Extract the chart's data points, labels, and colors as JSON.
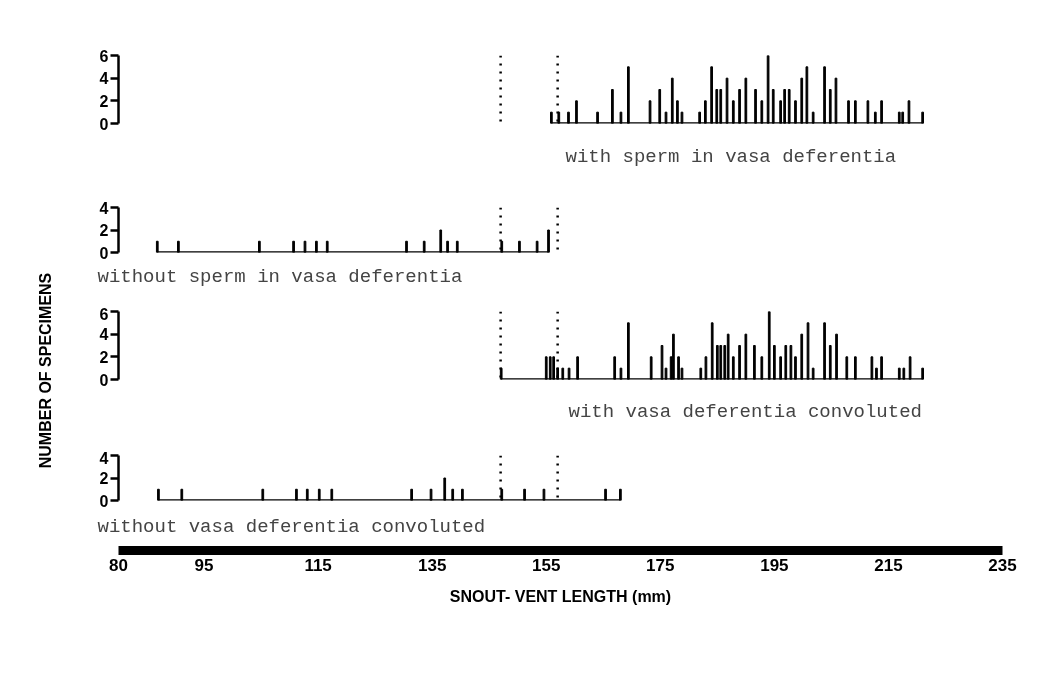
{
  "chart_data": [
    {
      "type": "bar",
      "title": "with sperm in vasa deferentia",
      "color": "#000000",
      "grid": false,
      "tick_labels": "y",
      "xlim": [
        80,
        235
      ],
      "xticks": [
        80,
        95,
        115,
        135,
        155,
        175,
        195,
        215,
        235
      ],
      "ylim": [
        0,
        6
      ],
      "yticks": [
        0,
        2,
        4,
        6
      ],
      "x": [
        155.9,
        157.2,
        158.9,
        160.3,
        164.0,
        166.6,
        168.1,
        169.4,
        173.2,
        174.9,
        176.0,
        177.1,
        178.0,
        178.8,
        181.9,
        182.9,
        184.0,
        184.9,
        185.6,
        186.7,
        187.8,
        188.9,
        190.0,
        191.7,
        192.8,
        193.9,
        194.8,
        196.1,
        196.8,
        197.6,
        198.7,
        199.8,
        200.7,
        201.8,
        203.8,
        204.8,
        205.8,
        208.0,
        209.2,
        211.4,
        212.7,
        213.8,
        216.9,
        217.5,
        218.6,
        221.0
      ],
      "values": [
        1,
        1,
        1,
        2,
        1,
        3,
        1,
        5,
        2,
        3,
        1,
        4,
        2,
        1,
        1,
        2,
        5,
        3,
        3,
        4,
        2,
        3,
        4,
        3,
        2,
        6,
        3,
        2,
        3,
        3,
        2,
        4,
        5,
        1,
        5,
        3,
        4,
        2,
        2,
        2,
        1,
        2,
        1,
        1,
        2,
        1
      ],
      "ref_lines": [
        {
          "axis": "x",
          "value": 147,
          "line_style": "dotted"
        },
        {
          "axis": "x",
          "value": 157,
          "line_style": "dotted"
        }
      ]
    },
    {
      "type": "bar",
      "title": "without sperm in vasa deferentia",
      "color": "#000000",
      "grid": false,
      "tick_labels": "y",
      "xlim": [
        80,
        235
      ],
      "xticks": [
        80,
        95,
        115,
        135,
        155,
        175,
        195,
        215,
        235
      ],
      "ylim": [
        0,
        4
      ],
      "yticks": [
        0,
        2,
        4
      ],
      "x": [
        86.8,
        90.5,
        104.7,
        110.7,
        112.7,
        114.7,
        116.6,
        130.5,
        133.6,
        136.5,
        137.7,
        139.4,
        147.2,
        150.3,
        153.4,
        155.4
      ],
      "values": [
        1,
        1,
        1,
        1,
        1,
        1,
        1,
        1,
        1,
        2,
        1,
        1,
        1,
        1,
        1,
        2
      ],
      "ref_lines": [
        {
          "axis": "x",
          "value": 147,
          "line_style": "dotted"
        },
        {
          "axis": "x",
          "value": 157,
          "line_style": "dotted"
        }
      ]
    },
    {
      "type": "bar",
      "title": "with vasa deferentia convoluted",
      "ylabel": "NUMBER OF SPECIMENS",
      "color": "#000000",
      "grid": false,
      "tick_labels": "y",
      "xlim": [
        80,
        235
      ],
      "xticks": [
        80,
        95,
        115,
        135,
        155,
        175,
        195,
        215,
        235
      ],
      "ylim": [
        0,
        6
      ],
      "yticks": [
        0,
        2,
        4,
        6
      ],
      "x": [
        147.1,
        155.0,
        155.7,
        156.3,
        157.0,
        157.9,
        159.0,
        160.5,
        167.0,
        168.1,
        169.4,
        173.4,
        175.3,
        176.0,
        176.9,
        177.3,
        178.2,
        178.8,
        182.1,
        183.0,
        184.1,
        185.0,
        185.6,
        186.3,
        186.9,
        187.8,
        188.9,
        190.0,
        191.5,
        192.8,
        194.1,
        195.0,
        196.1,
        197.0,
        197.9,
        198.7,
        199.8,
        200.9,
        201.8,
        203.8,
        204.8,
        205.9,
        207.7,
        209.2,
        212.1,
        212.9,
        213.8,
        216.9,
        217.7,
        218.8,
        221.0
      ],
      "values": [
        1,
        2,
        2,
        2,
        1,
        1,
        1,
        2,
        2,
        1,
        5,
        2,
        3,
        1,
        2,
        4,
        2,
        1,
        1,
        2,
        5,
        3,
        3,
        3,
        4,
        2,
        3,
        4,
        3,
        2,
        6,
        3,
        2,
        3,
        3,
        2,
        4,
        5,
        1,
        5,
        3,
        4,
        2,
        2,
        2,
        1,
        2,
        1,
        1,
        2,
        1
      ],
      "ref_lines": [
        {
          "axis": "x",
          "value": 147,
          "line_style": "dotted"
        },
        {
          "axis": "x",
          "value": 157,
          "line_style": "dotted"
        }
      ]
    },
    {
      "type": "bar",
      "title": "without vasa deferentia convoluted",
      "xlabel": "SNOUT- VENT LENGTH (mm)",
      "color": "#000000",
      "grid": false,
      "xlim": [
        80,
        235
      ],
      "xticks": [
        80,
        95,
        115,
        135,
        155,
        175,
        195,
        215,
        235
      ],
      "ylim": [
        0,
        4
      ],
      "yticks": [
        0,
        2,
        4
      ],
      "x": [
        87.0,
        91.1,
        105.3,
        111.2,
        113.1,
        115.2,
        117.4,
        131.4,
        134.8,
        137.2,
        138.6,
        140.3,
        147.2,
        151.2,
        154.6,
        165.4,
        168.0
      ],
      "values": [
        1,
        1,
        1,
        1,
        1,
        1,
        1,
        1,
        1,
        2,
        1,
        1,
        1,
        1,
        1,
        1,
        1
      ],
      "ref_lines": [
        {
          "axis": "x",
          "value": 147,
          "line_style": "dotted"
        },
        {
          "axis": "x",
          "value": 157,
          "line_style": "dotted"
        }
      ]
    }
  ]
}
